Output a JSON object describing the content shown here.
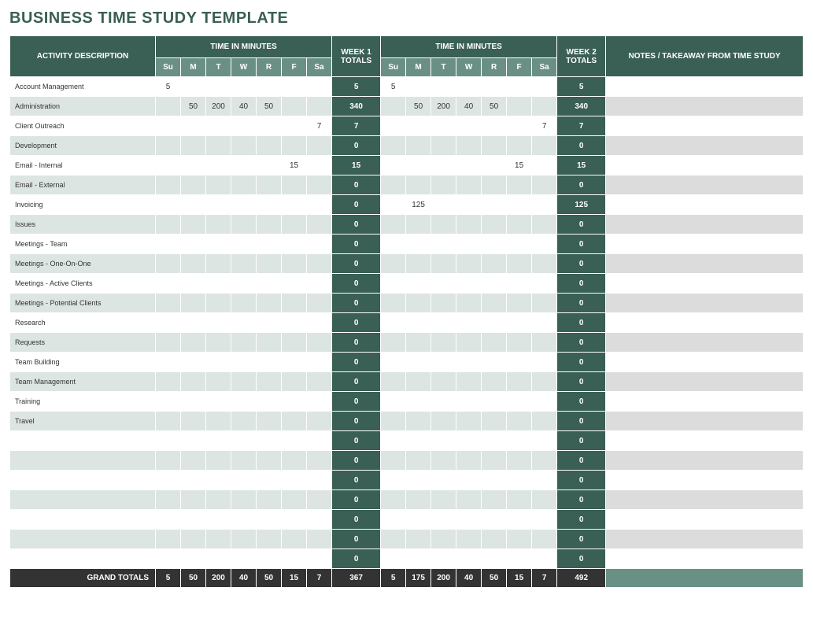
{
  "title": "BUSINESS TIME STUDY TEMPLATE",
  "headers": {
    "activity": "ACTIVITY DESCRIPTION",
    "time_in_minutes": "TIME IN MINUTES",
    "week1_totals": "WEEK 1 TOTALS",
    "week2_totals": "WEEK 2 TOTALS",
    "notes": "NOTES / TAKEAWAY FROM TIME STUDY",
    "days": [
      "Su",
      "M",
      "T",
      "W",
      "R",
      "F",
      "Sa"
    ]
  },
  "rows": [
    {
      "activity": "Account Management",
      "w1": [
        "5",
        "",
        "",
        "",
        "",
        "",
        ""
      ],
      "t1": "5",
      "w2": [
        "5",
        "",
        "",
        "",
        "",
        "",
        ""
      ],
      "t2": "5",
      "notes": ""
    },
    {
      "activity": "Administration",
      "w1": [
        "",
        "50",
        "200",
        "40",
        "50",
        "",
        ""
      ],
      "t1": "340",
      "w2": [
        "",
        "50",
        "200",
        "40",
        "50",
        "",
        ""
      ],
      "t2": "340",
      "notes": ""
    },
    {
      "activity": "Client Outreach",
      "w1": [
        "",
        "",
        "",
        "",
        "",
        "",
        "7"
      ],
      "t1": "7",
      "w2": [
        "",
        "",
        "",
        "",
        "",
        "",
        "7"
      ],
      "t2": "7",
      "notes": ""
    },
    {
      "activity": "Development",
      "w1": [
        "",
        "",
        "",
        "",
        "",
        "",
        ""
      ],
      "t1": "0",
      "w2": [
        "",
        "",
        "",
        "",
        "",
        "",
        ""
      ],
      "t2": "0",
      "notes": ""
    },
    {
      "activity": "Email - Internal",
      "w1": [
        "",
        "",
        "",
        "",
        "",
        "15",
        ""
      ],
      "t1": "15",
      "w2": [
        "",
        "",
        "",
        "",
        "",
        "15",
        ""
      ],
      "t2": "15",
      "notes": ""
    },
    {
      "activity": "Email - External",
      "w1": [
        "",
        "",
        "",
        "",
        "",
        "",
        ""
      ],
      "t1": "0",
      "w2": [
        "",
        "",
        "",
        "",
        "",
        "",
        ""
      ],
      "t2": "0",
      "notes": ""
    },
    {
      "activity": "Invoicing",
      "w1": [
        "",
        "",
        "",
        "",
        "",
        "",
        ""
      ],
      "t1": "0",
      "w2": [
        "",
        "125",
        "",
        "",
        "",
        "",
        ""
      ],
      "t2": "125",
      "notes": ""
    },
    {
      "activity": "Issues",
      "w1": [
        "",
        "",
        "",
        "",
        "",
        "",
        ""
      ],
      "t1": "0",
      "w2": [
        "",
        "",
        "",
        "",
        "",
        "",
        ""
      ],
      "t2": "0",
      "notes": ""
    },
    {
      "activity": "Meetings - Team",
      "w1": [
        "",
        "",
        "",
        "",
        "",
        "",
        ""
      ],
      "t1": "0",
      "w2": [
        "",
        "",
        "",
        "",
        "",
        "",
        ""
      ],
      "t2": "0",
      "notes": ""
    },
    {
      "activity": "Meetings - One-On-One",
      "w1": [
        "",
        "",
        "",
        "",
        "",
        "",
        ""
      ],
      "t1": "0",
      "w2": [
        "",
        "",
        "",
        "",
        "",
        "",
        ""
      ],
      "t2": "0",
      "notes": ""
    },
    {
      "activity": "Meetings - Active Clients",
      "w1": [
        "",
        "",
        "",
        "",
        "",
        "",
        ""
      ],
      "t1": "0",
      "w2": [
        "",
        "",
        "",
        "",
        "",
        "",
        ""
      ],
      "t2": "0",
      "notes": ""
    },
    {
      "activity": "Meetings - Potential Clients",
      "w1": [
        "",
        "",
        "",
        "",
        "",
        "",
        ""
      ],
      "t1": "0",
      "w2": [
        "",
        "",
        "",
        "",
        "",
        "",
        ""
      ],
      "t2": "0",
      "notes": ""
    },
    {
      "activity": "Research",
      "w1": [
        "",
        "",
        "",
        "",
        "",
        "",
        ""
      ],
      "t1": "0",
      "w2": [
        "",
        "",
        "",
        "",
        "",
        "",
        ""
      ],
      "t2": "0",
      "notes": ""
    },
    {
      "activity": "Requests",
      "w1": [
        "",
        "",
        "",
        "",
        "",
        "",
        ""
      ],
      "t1": "0",
      "w2": [
        "",
        "",
        "",
        "",
        "",
        "",
        ""
      ],
      "t2": "0",
      "notes": ""
    },
    {
      "activity": "Team Building",
      "w1": [
        "",
        "",
        "",
        "",
        "",
        "",
        ""
      ],
      "t1": "0",
      "w2": [
        "",
        "",
        "",
        "",
        "",
        "",
        ""
      ],
      "t2": "0",
      "notes": ""
    },
    {
      "activity": "Team Management",
      "w1": [
        "",
        "",
        "",
        "",
        "",
        "",
        ""
      ],
      "t1": "0",
      "w2": [
        "",
        "",
        "",
        "",
        "",
        "",
        ""
      ],
      "t2": "0",
      "notes": ""
    },
    {
      "activity": "Training",
      "w1": [
        "",
        "",
        "",
        "",
        "",
        "",
        ""
      ],
      "t1": "0",
      "w2": [
        "",
        "",
        "",
        "",
        "",
        "",
        ""
      ],
      "t2": "0",
      "notes": ""
    },
    {
      "activity": "Travel",
      "w1": [
        "",
        "",
        "",
        "",
        "",
        "",
        ""
      ],
      "t1": "0",
      "w2": [
        "",
        "",
        "",
        "",
        "",
        "",
        ""
      ],
      "t2": "0",
      "notes": ""
    },
    {
      "activity": "",
      "w1": [
        "",
        "",
        "",
        "",
        "",
        "",
        ""
      ],
      "t1": "0",
      "w2": [
        "",
        "",
        "",
        "",
        "",
        "",
        ""
      ],
      "t2": "0",
      "notes": ""
    },
    {
      "activity": "",
      "w1": [
        "",
        "",
        "",
        "",
        "",
        "",
        ""
      ],
      "t1": "0",
      "w2": [
        "",
        "",
        "",
        "",
        "",
        "",
        ""
      ],
      "t2": "0",
      "notes": ""
    },
    {
      "activity": "",
      "w1": [
        "",
        "",
        "",
        "",
        "",
        "",
        ""
      ],
      "t1": "0",
      "w2": [
        "",
        "",
        "",
        "",
        "",
        "",
        ""
      ],
      "t2": "0",
      "notes": ""
    },
    {
      "activity": "",
      "w1": [
        "",
        "",
        "",
        "",
        "",
        "",
        ""
      ],
      "t1": "0",
      "w2": [
        "",
        "",
        "",
        "",
        "",
        "",
        ""
      ],
      "t2": "0",
      "notes": ""
    },
    {
      "activity": "",
      "w1": [
        "",
        "",
        "",
        "",
        "",
        "",
        ""
      ],
      "t1": "0",
      "w2": [
        "",
        "",
        "",
        "",
        "",
        "",
        ""
      ],
      "t2": "0",
      "notes": ""
    },
    {
      "activity": "",
      "w1": [
        "",
        "",
        "",
        "",
        "",
        "",
        ""
      ],
      "t1": "0",
      "w2": [
        "",
        "",
        "",
        "",
        "",
        "",
        ""
      ],
      "t2": "0",
      "notes": ""
    },
    {
      "activity": "",
      "w1": [
        "",
        "",
        "",
        "",
        "",
        "",
        ""
      ],
      "t1": "0",
      "w2": [
        "",
        "",
        "",
        "",
        "",
        "",
        ""
      ],
      "t2": "0",
      "notes": ""
    }
  ],
  "footer": {
    "label": "GRAND TOTALS",
    "w1": [
      "5",
      "50",
      "200",
      "40",
      "50",
      "15",
      "7"
    ],
    "t1": "367",
    "w2": [
      "5",
      "175",
      "200",
      "40",
      "50",
      "15",
      "7"
    ],
    "t2": "492",
    "notes": ""
  },
  "colors": {
    "header_bg": "#3a5f55",
    "day_bg": "#6a9086",
    "row_even_bg": "#dce5e1",
    "row_odd_bg": "#ffffff",
    "footer_bg": "#333333",
    "title_color": "#3a5f55"
  }
}
